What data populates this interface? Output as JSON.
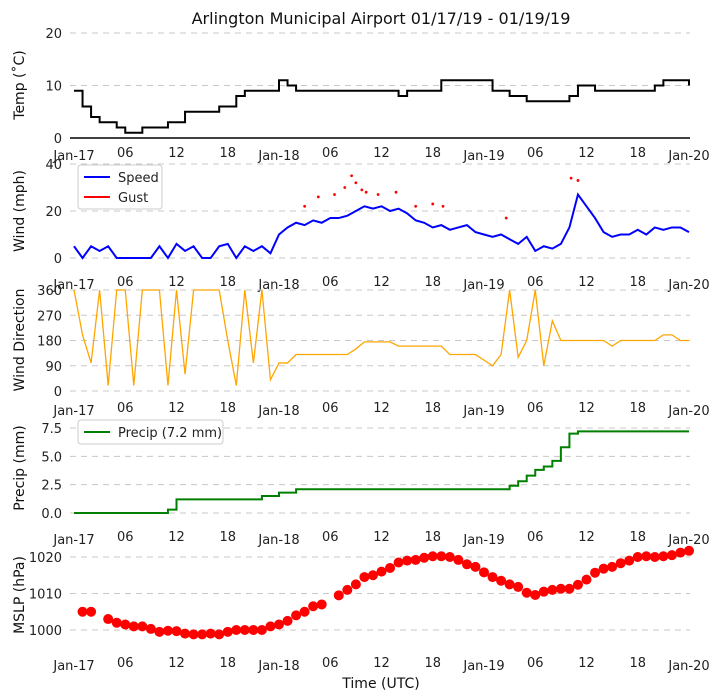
{
  "chart_data": {
    "type": "line",
    "title": "Arlington Municipal Airport 01/17/19 - 01/19/19",
    "xlabel": "Time (UTC)",
    "x_unit": "hours since 2019-01-17 00 UTC",
    "xlim": [
      0,
      72
    ],
    "x_tick_labels": [
      "Jan-17",
      "06",
      "12",
      "18",
      "Jan-18",
      "06",
      "12",
      "18",
      "Jan-19",
      "06",
      "12",
      "18",
      "Jan-20"
    ],
    "hours": [
      0,
      1,
      2,
      3,
      4,
      5,
      6,
      7,
      8,
      9,
      10,
      11,
      12,
      13,
      14,
      15,
      16,
      17,
      18,
      19,
      20,
      21,
      22,
      23,
      24,
      25,
      26,
      27,
      28,
      29,
      30,
      31,
      32,
      33,
      34,
      35,
      36,
      37,
      38,
      39,
      40,
      41,
      42,
      43,
      44,
      45,
      46,
      47,
      48,
      49,
      50,
      51,
      52,
      53,
      54,
      55,
      56,
      57,
      58,
      59,
      60,
      61,
      62,
      63,
      64,
      65,
      66,
      67,
      68,
      69,
      70,
      71,
      72
    ],
    "panels": {
      "temp": {
        "ylabel": "Temp ($^\\circ$C)",
        "ylabel_text": "Temp (˚C)",
        "ylim": [
          0,
          20
        ],
        "yticks": [
          "0",
          "10",
          "20"
        ],
        "ytick_values": [
          0,
          10,
          20
        ],
        "series": [
          {
            "name": "Temp",
            "color": "#000000",
            "values": [
              9,
              6,
              4,
              3,
              3,
              2,
              1,
              1,
              2,
              2,
              2,
              3,
              3,
              5,
              5,
              5,
              5,
              6,
              6,
              8,
              9,
              9,
              9,
              9,
              11,
              10,
              9,
              9,
              9,
              9,
              9,
              9,
              9,
              9,
              9,
              9,
              9,
              9,
              8,
              9,
              9,
              9,
              9,
              11,
              11,
              11,
              11,
              11,
              11,
              9,
              9,
              8,
              8,
              7,
              7,
              7,
              7,
              7,
              8,
              10,
              10,
              9,
              9,
              9,
              9,
              9,
              9,
              9,
              10,
              11,
              11,
              11,
              10
            ]
          }
        ]
      },
      "wind": {
        "ylabel_text": "Wind (mph)",
        "ylim": [
          0,
          40
        ],
        "yticks": [
          "0",
          "20",
          "40"
        ],
        "ytick_values": [
          0,
          20,
          40
        ],
        "legend": [
          "Speed",
          "Gust"
        ],
        "legend_position": "top-left",
        "series": [
          {
            "name": "Speed",
            "color": "#0000ff",
            "values": [
              5,
              0,
              5,
              3,
              5,
              0,
              0,
              0,
              0,
              0,
              5,
              0,
              6,
              3,
              5,
              0,
              0,
              5,
              6,
              0,
              5,
              3,
              5,
              2,
              10,
              13,
              15,
              14,
              16,
              15,
              17,
              17,
              18,
              20,
              22,
              21,
              22,
              20,
              21,
              19,
              16,
              15,
              13,
              14,
              12,
              13,
              14,
              11,
              10,
              9,
              10,
              8,
              6,
              9,
              3,
              5,
              4,
              6,
              13,
              27,
              22,
              17,
              11,
              9,
              10,
              10,
              12,
              10,
              13,
              12,
              13,
              13,
              11
            ]
          },
          {
            "name": "Gust",
            "color": "#ff0000",
            "points": [
              [
                27,
                22
              ],
              [
                28.6,
                26
              ],
              [
                30.5,
                27
              ],
              [
                31.7,
                30
              ],
              [
                32.5,
                35
              ],
              [
                33,
                32
              ],
              [
                33.7,
                29
              ],
              [
                34.2,
                28
              ],
              [
                35.6,
                27
              ],
              [
                37.7,
                28
              ],
              [
                40,
                22
              ],
              [
                42,
                23
              ],
              [
                43.2,
                22
              ],
              [
                50.6,
                17
              ],
              [
                58.2,
                34
              ],
              [
                59,
                33
              ]
            ]
          }
        ]
      },
      "dir": {
        "ylabel_text": "Wind Direction",
        "ylim": [
          0,
          360
        ],
        "yticks": [
          "0",
          "90",
          "180",
          "270",
          "360"
        ],
        "ytick_values": [
          0,
          90,
          180,
          270,
          360
        ],
        "series": [
          {
            "name": "Direction",
            "color": "#ffa500",
            "values": [
              360,
              200,
              100,
              360,
              20,
              360,
              360,
              20,
              360,
              360,
              360,
              20,
              360,
              60,
              360,
              360,
              360,
              360,
              180,
              20,
              360,
              100,
              360,
              40,
              100,
              100,
              130,
              130,
              130,
              130,
              130,
              130,
              130,
              150,
              175,
              175,
              175,
              175,
              160,
              160,
              160,
              160,
              160,
              160,
              130,
              130,
              130,
              130,
              110,
              90,
              130,
              360,
              120,
              180,
              360,
              90,
              250,
              180,
              180,
              180,
              180,
              180,
              180,
              160,
              180,
              180,
              180,
              180,
              180,
              200,
              200,
              180,
              180
            ]
          }
        ]
      },
      "precip": {
        "ylabel_text": "Precip (mm)",
        "ylim": [
          0,
          7.5
        ],
        "yticks": [
          "0.0",
          "2.5",
          "5.0",
          "7.5"
        ],
        "ytick_values": [
          0,
          2.5,
          5,
          7.5
        ],
        "legend": [
          "Precip (7.2 mm)"
        ],
        "legend_position": "top-left",
        "series": [
          {
            "name": "Precip",
            "color": "#008000",
            "values": [
              0,
              0,
              0,
              0,
              0,
              0,
              0,
              0,
              0,
              0,
              0,
              0.3,
              1.2,
              1.2,
              1.2,
              1.2,
              1.2,
              1.2,
              1.2,
              1.2,
              1.2,
              1.2,
              1.5,
              1.5,
              1.8,
              1.8,
              2.1,
              2.1,
              2.1,
              2.1,
              2.1,
              2.1,
              2.1,
              2.1,
              2.1,
              2.1,
              2.1,
              2.1,
              2.1,
              2.1,
              2.1,
              2.1,
              2.1,
              2.1,
              2.1,
              2.1,
              2.1,
              2.1,
              2.1,
              2.1,
              2.1,
              2.4,
              2.8,
              3.3,
              3.8,
              4.1,
              4.6,
              5.8,
              7.0,
              7.2,
              7.2,
              7.2,
              7.2,
              7.2,
              7.2,
              7.2,
              7.2,
              7.2,
              7.2,
              7.2,
              7.2,
              7.2,
              7.2
            ]
          }
        ]
      },
      "mslp": {
        "ylabel_text": "MSLP (hPa)",
        "ylim": [
          1000,
          1020
        ],
        "yticks": [
          "1000",
          "1010",
          "1020"
        ],
        "ytick_values": [
          1000,
          1010,
          1020
        ],
        "series": [
          {
            "name": "MSLP",
            "color": "#ff0000",
            "type": "scatter",
            "hours": [
              1,
              2,
              4,
              5,
              6,
              7,
              8,
              9,
              10,
              11,
              12,
              13,
              14,
              15,
              16,
              17,
              18,
              19,
              20,
              21,
              22,
              23,
              24,
              25,
              26,
              27,
              28,
              29,
              31,
              32,
              33,
              34,
              35,
              36,
              37,
              38,
              39,
              40,
              41,
              42,
              43,
              44,
              45,
              46,
              47,
              48,
              49,
              50,
              51,
              52,
              53,
              54,
              55,
              56,
              57,
              58,
              59,
              60,
              61,
              62,
              63,
              64,
              65,
              66,
              67,
              68,
              69,
              70,
              71,
              72
            ],
            "values": [
              1005,
              1005,
              1003,
              1002,
              1001.5,
              1001,
              1001,
              1000.3,
              999.5,
              999.8,
              999.7,
              999,
              998.8,
              998.8,
              999,
              998.8,
              999.5,
              1000,
              1000,
              1000,
              1000,
              1001,
              1001.5,
              1002.5,
              1004,
              1005,
              1006.5,
              1007,
              1009.5,
              1011,
              1012.5,
              1014.5,
              1015,
              1016,
              1017,
              1018.5,
              1019,
              1019.2,
              1019.8,
              1020.2,
              1020.2,
              1020,
              1019.2,
              1018,
              1017.3,
              1015.8,
              1014.5,
              1013.5,
              1012.5,
              1011.8,
              1010.2,
              1009.6,
              1010.5,
              1011,
              1011.3,
              1011.3,
              1012.4,
              1013.8,
              1015.7,
              1016.8,
              1017.3,
              1018.3,
              1019,
              1020,
              1020.2,
              1020,
              1020.2,
              1020.5,
              1021.2,
              1021.7
            ]
          }
        ]
      }
    }
  }
}
